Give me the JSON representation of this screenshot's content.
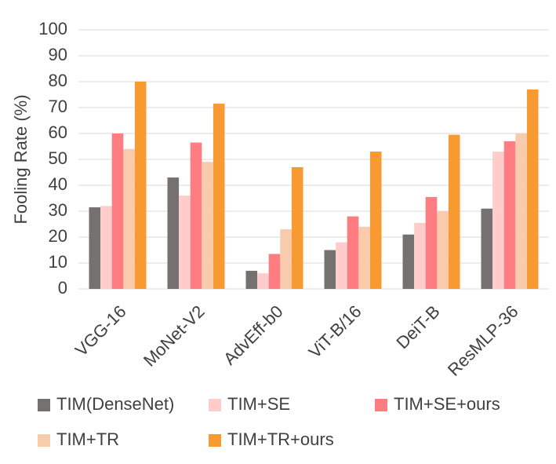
{
  "chart_data": {
    "type": "bar",
    "y_label": "Fooling Rate (%)",
    "categories": [
      "VGG-16",
      "MoNet-V2",
      "AdvEff-b0",
      "ViT-B/16",
      "DeiT-B",
      "ResMLP-36"
    ],
    "series": [
      {
        "name": "TIM(DenseNet)",
        "color": "#767171",
        "values": [
          31.5,
          43,
          7,
          15,
          21,
          31
        ]
      },
      {
        "name": "TIM+SE",
        "color": "#ffcccc",
        "values": [
          32,
          36,
          6,
          18,
          25.5,
          53
        ]
      },
      {
        "name": "TIM+SE+ours",
        "color": "#ff7c80",
        "values": [
          60,
          56.5,
          13.5,
          28,
          35.5,
          57
        ]
      },
      {
        "name": "TIM+TR",
        "color": "#f8cbad",
        "values": [
          54,
          49,
          23,
          24,
          30,
          60
        ]
      },
      {
        "name": "TIM+TR+ours",
        "color": "#f79a32",
        "values": [
          80,
          71.5,
          47,
          53,
          59.5,
          77
        ]
      }
    ],
    "ylim": [
      0,
      100
    ],
    "yticks": [
      0,
      10,
      20,
      30,
      40,
      50,
      60,
      70,
      80,
      90,
      100
    ],
    "grid": true
  }
}
